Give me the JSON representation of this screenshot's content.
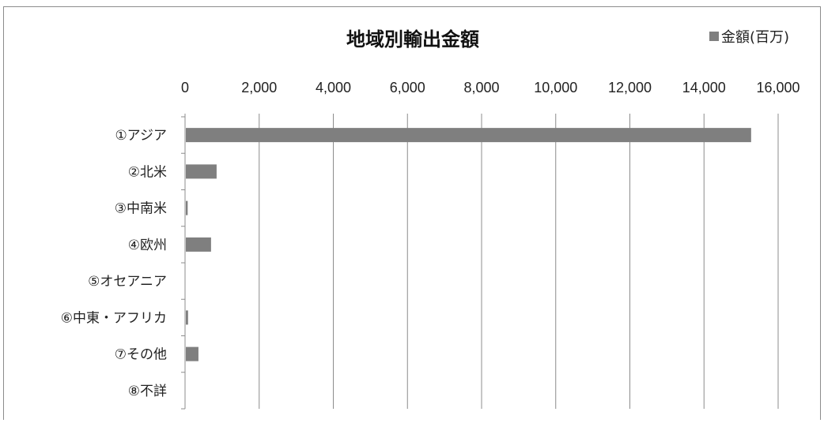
{
  "chart_data": {
    "type": "bar",
    "orientation": "horizontal",
    "title": "地域別輸出金額",
    "legend": {
      "label": "金額(百万)",
      "position": "top-right",
      "color": "#7f7f7f"
    },
    "xlim": [
      0,
      16000
    ],
    "x_ticks": [
      0,
      2000,
      4000,
      6000,
      8000,
      10000,
      12000,
      14000,
      16000
    ],
    "x_tick_labels": [
      "0",
      "2,000",
      "4,000",
      "6,000",
      "8,000",
      "10,000",
      "12,000",
      "14,000",
      "16,000"
    ],
    "x_axis_position": "top",
    "grid": "vertical",
    "categories": [
      "①アジア",
      "②北米",
      "③中南米",
      "④欧州",
      "⑤オセアニア",
      "⑥中東・アフリカ",
      "⑦その他",
      "⑧不詳"
    ],
    "series": [
      {
        "values": [
          15250,
          830,
          50,
          680,
          0,
          60,
          340,
          0
        ]
      }
    ],
    "bar_color": "#7f7f7f"
  }
}
